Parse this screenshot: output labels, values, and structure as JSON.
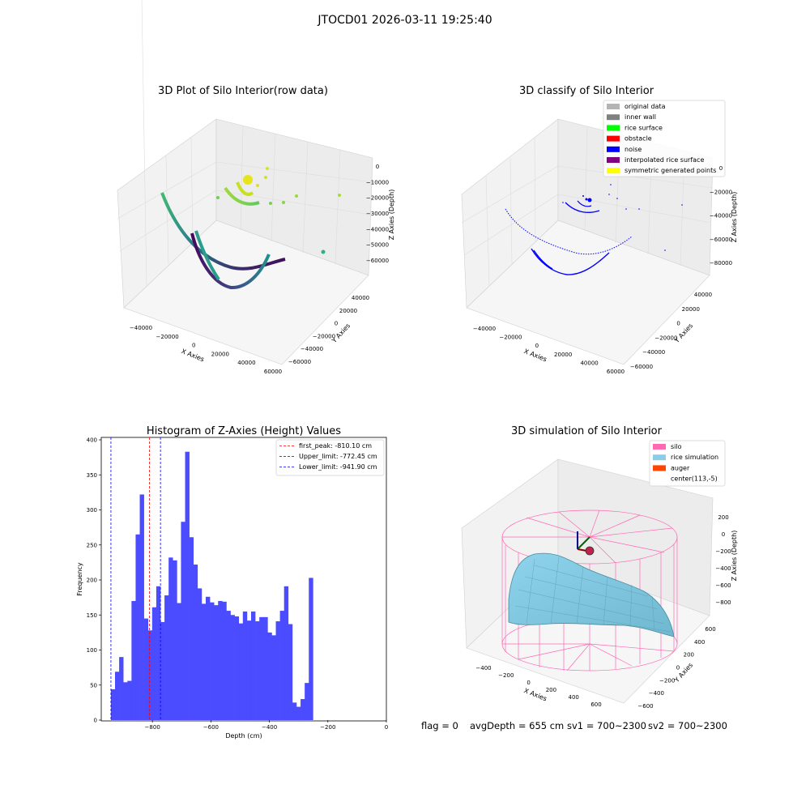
{
  "suptitle": "JTOCD01 2026-03-11 19:25:40",
  "status": {
    "flag": "flag = 0",
    "avg_depth": "avgDepth = 655 cm",
    "sv1": "sv1 = 700~2300",
    "sv2": "sv2 = 700~2300"
  },
  "panels": {
    "raw": {
      "title": "3D Plot of Silo Interior(row data)",
      "xlabel": "X Axies",
      "ylabel": "Y Axies",
      "zlabel": "Z Axies (Depth)",
      "xticks": [
        "−40000",
        "−20000",
        "0",
        "20000",
        "40000",
        "60000"
      ],
      "yticks": [
        "40000",
        "20000",
        "0",
        "−20000",
        "−40000",
        "−60000"
      ],
      "zticks": [
        "0",
        "−10000",
        "−20000",
        "−30000",
        "−40000",
        "−50000",
        "−60000"
      ]
    },
    "classify": {
      "title": "3D classify of Silo Interior",
      "xlabel": "X Axies",
      "ylabel": "Y Axies",
      "zlabel": "Z Axies (Depth)",
      "xticks": [
        "−40000",
        "−20000",
        "0",
        "20000",
        "40000",
        "60000"
      ],
      "yticks": [
        "40000",
        "20000",
        "0",
        "−20000",
        "−40000",
        "−60000"
      ],
      "zticks": [
        "0",
        "−20000",
        "−40000",
        "−60000",
        "−80000"
      ],
      "legend": [
        {
          "label": "original data",
          "color": "#b4b4b4"
        },
        {
          "label": "inner wall",
          "color": "#808080"
        },
        {
          "label": "rice surface",
          "color": "#00ff00"
        },
        {
          "label": "obstacle",
          "color": "#ff0000"
        },
        {
          "label": "noise",
          "color": "#0000ff"
        },
        {
          "label": "interpolated rice surface",
          "color": "#800080"
        },
        {
          "label": "symmetric generated points",
          "color": "#ffff00"
        }
      ]
    },
    "simulation": {
      "title": "3D simulation of Silo Interior",
      "xlabel": "X Axies",
      "ylabel": "Y Axies",
      "zlabel": "Z Axies (Depth)",
      "xticks": [
        "−400",
        "−200",
        "0",
        "200",
        "400",
        "600"
      ],
      "yticks": [
        "600",
        "400",
        "200",
        "0",
        "−200",
        "−400",
        "−600"
      ],
      "zticks": [
        "200",
        "0",
        "−200",
        "−400",
        "−600",
        "−800"
      ],
      "legend": [
        {
          "label": "silo",
          "color": "#ff69b4"
        },
        {
          "label": "rice simulation",
          "color": "#87ceeb"
        },
        {
          "label": "auger",
          "color": "#ff4500"
        },
        {
          "label": "center(113,-5)",
          "color": ""
        }
      ]
    }
  },
  "chart_data": {
    "type": "bar",
    "title": "Histogram of Z-Axies (Height) Values",
    "xlabel": "Depth (cm)",
    "ylabel": "Frequency",
    "xlim": [
      -975,
      0
    ],
    "ylim": [
      0,
      400
    ],
    "bar_color": "#4b4bff",
    "xticks": [
      -800,
      -600,
      -400,
      -200,
      0
    ],
    "yticks": [
      0,
      50,
      100,
      150,
      200,
      250,
      300,
      350,
      400
    ],
    "bin_start": -942,
    "bin_width": 14.1,
    "values": [
      44,
      69,
      90,
      54,
      56,
      170,
      265,
      322,
      145,
      128,
      161,
      191,
      140,
      178,
      232,
      228,
      167,
      283,
      383,
      261,
      222,
      188,
      166,
      176,
      168,
      164,
      170,
      169,
      156,
      150,
      148,
      138,
      155,
      142,
      155,
      141,
      147,
      147,
      125,
      121,
      141,
      156,
      191,
      137,
      25,
      19,
      30,
      53,
      203
    ],
    "vlines": [
      {
        "label": "first_peak: -810.10 cm",
        "x": -810.1,
        "color": "#ff0000"
      },
      {
        "label": "Upper_limit: -772.45 cm",
        "x": -772.45,
        "color": "#0000ff"
      },
      {
        "label": "Lower_limit: -941.90 cm",
        "x": -941.9,
        "color": "#0000ff"
      }
    ]
  }
}
